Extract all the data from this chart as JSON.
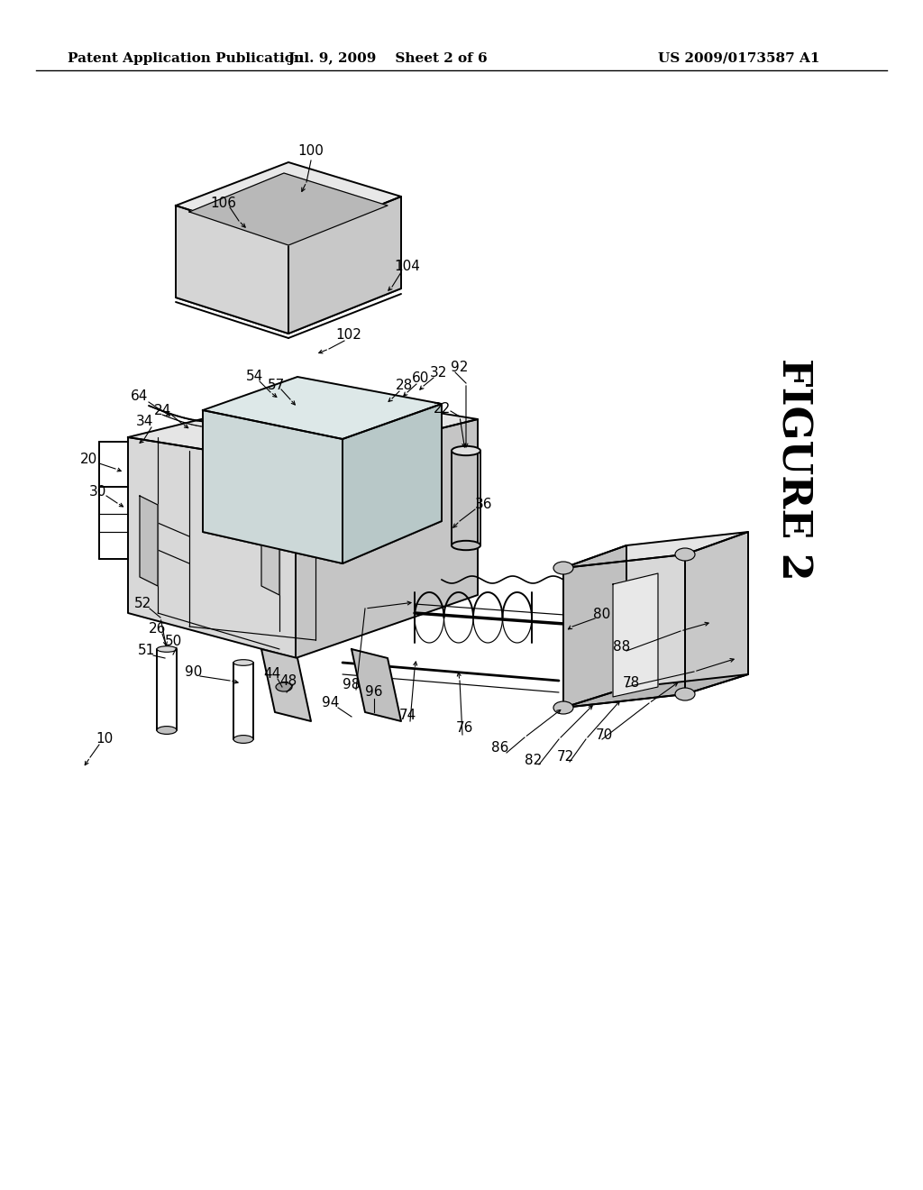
{
  "title": "FIGURE 2",
  "header_left": "Patent Application Publication",
  "header_center": "Jul. 9, 2009    Sheet 2 of 6",
  "header_right": "US 2009/0173587 A1",
  "background_color": "#ffffff",
  "line_color": "#000000",
  "header_fontsize": 11,
  "figure_title_fontsize": 32,
  "label_fontsize": 11,
  "lw_main": 1.4,
  "lw_thin": 0.85,
  "lw_leader": 0.8
}
